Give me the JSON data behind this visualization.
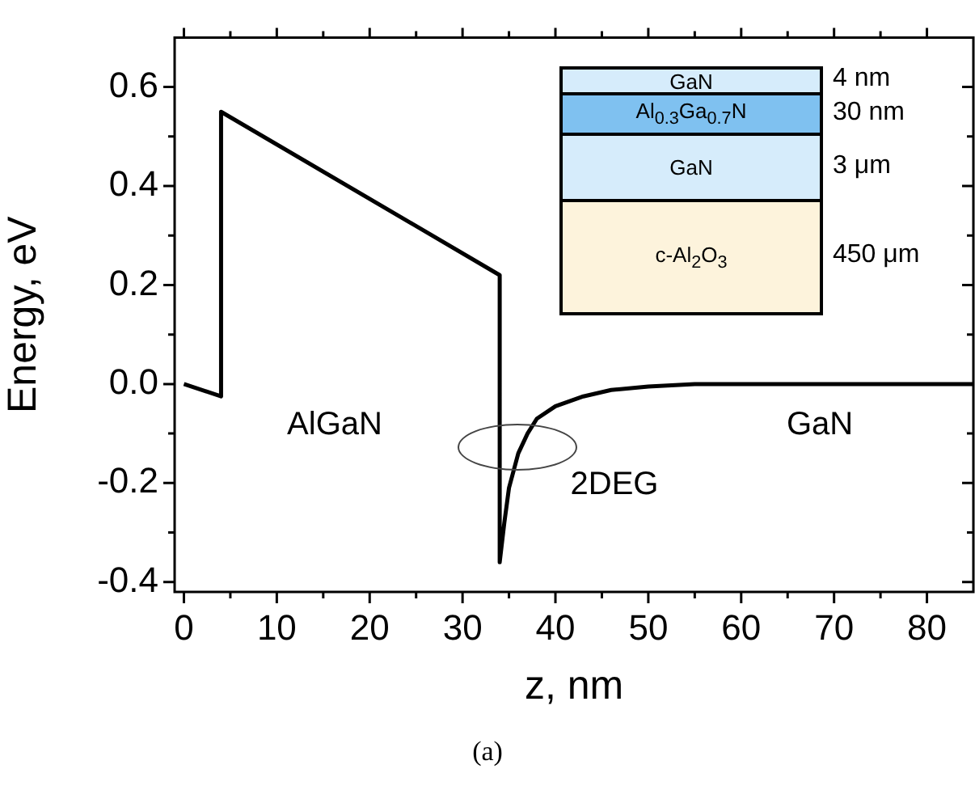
{
  "chart_data": {
    "type": "line",
    "xlabel": "z, nm",
    "ylabel": "Energy, eV",
    "series": [
      {
        "color": "#000000",
        "x": [
          0,
          4,
          4,
          34,
          34,
          34.5,
          35,
          36,
          37,
          38,
          40,
          43,
          46,
          50,
          55,
          85
        ],
        "values": [
          0,
          -0.025,
          0.55,
          0.22,
          -0.36,
          -0.28,
          -0.21,
          -0.14,
          -0.1,
          -0.07,
          -0.045,
          -0.025,
          -0.012,
          -0.005,
          0,
          0
        ]
      }
    ],
    "xlim": [
      -1,
      85
    ],
    "ylim": [
      -0.42,
      0.7
    ],
    "xticks": [
      0,
      {
        "value": 5,
        "label": null
      },
      10,
      {
        "value": 15,
        "label": null
      },
      20,
      {
        "value": 25,
        "label": null
      },
      30,
      {
        "value": 35,
        "label": null
      },
      40,
      {
        "value": 45,
        "label": null
      },
      50,
      {
        "value": 55,
        "label": null
      },
      60,
      {
        "value": 65,
        "label": null
      },
      70,
      {
        "value": 75,
        "label": null
      },
      80
    ],
    "yticks": [
      {
        "value": -0.4,
        "label": "-0.4"
      },
      {
        "value": -0.3,
        "label": null
      },
      {
        "value": -0.2,
        "label": "-0.2"
      },
      {
        "value": -0.1,
        "label": null
      },
      {
        "value": 0,
        "label": "0.0"
      },
      {
        "value": 0.1,
        "label": null
      },
      {
        "value": 0.2,
        "label": "0.2"
      },
      {
        "value": 0.3,
        "label": null
      },
      {
        "value": 0.4,
        "label": "0.4"
      },
      {
        "value": 0.5,
        "label": null
      },
      {
        "value": 0.6,
        "label": "0.6"
      }
    ],
    "annotations": [
      "AlGaN",
      "GaN",
      "2DEG",
      "GaN",
      "Al$_{0.3}$Ga$_{0.7}$N",
      "GaN",
      "c-Al$_{2}$O$_{3}$",
      "4 nm",
      "30 nm",
      "3 μm",
      "450 μm",
      "(a)"
    ],
    "grid": false,
    "legend": false,
    "marker": "none",
    "line_style": "solid"
  }
}
